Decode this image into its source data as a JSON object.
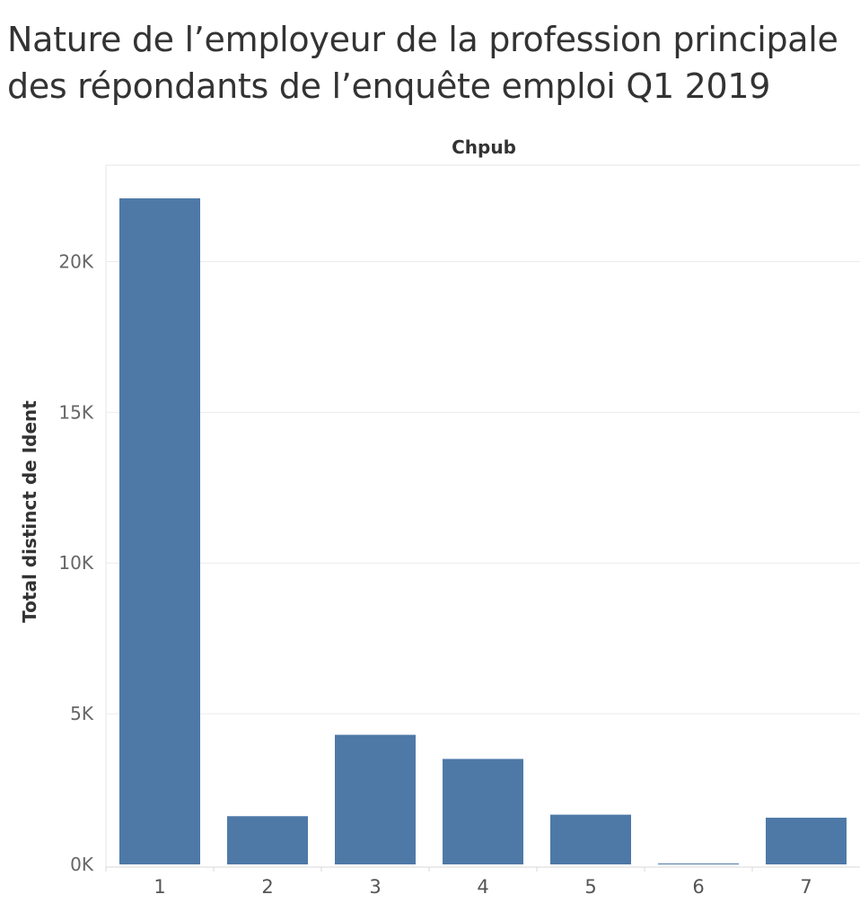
{
  "title_line1": "Nature de l’employeur de la profession principale",
  "title_line2": "des répondants de l’enquête emploi Q1 2019",
  "chart_data": {
    "type": "bar",
    "column_header": "Chpub",
    "categories": [
      "1",
      "2",
      "3",
      "4",
      "5",
      "6",
      "7"
    ],
    "values": [
      22100,
      1600,
      4300,
      3500,
      1650,
      30,
      1550
    ],
    "ylabel": "Total distinct de Ident",
    "ylim": [
      0,
      23200
    ],
    "yticks": [
      0,
      5000,
      10000,
      15000,
      20000
    ],
    "ytick_labels": [
      "0K",
      "5K",
      "10K",
      "15K",
      "20K"
    ],
    "grid": true,
    "bar_color": "#4e79a7"
  }
}
